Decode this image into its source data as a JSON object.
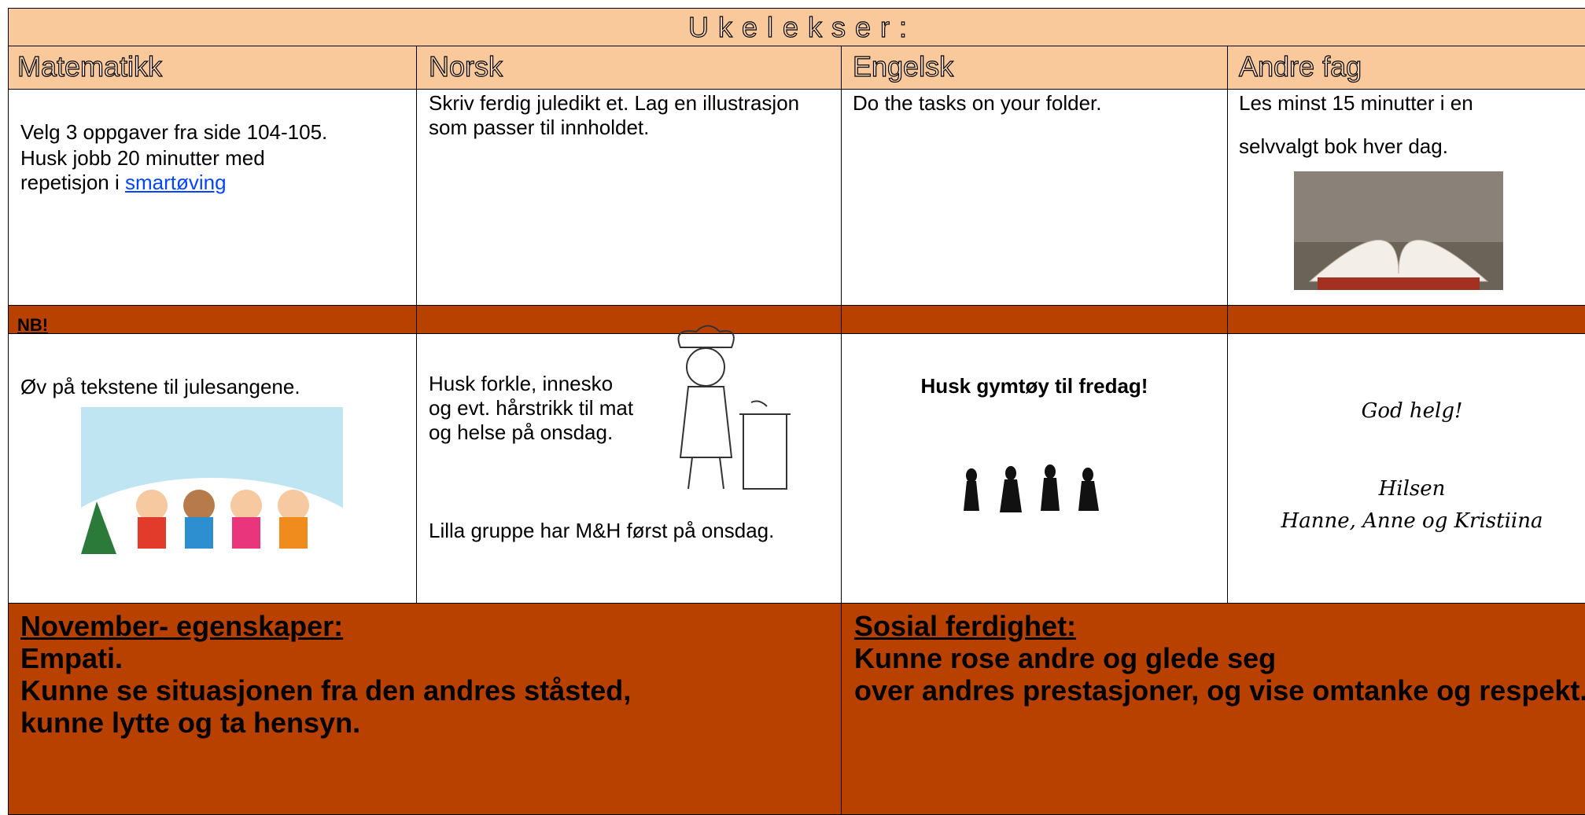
{
  "header": {
    "title": "Ukelekser:"
  },
  "table": {
    "headers": [
      "Matematikk",
      "Norsk",
      "Engelsk",
      "Andre fag"
    ],
    "homework": {
      "math": {
        "line1": "Velg 3 oppgaver fra side 104-105.",
        "line2": "Husk jobb 20 minutter med repetisjon i",
        "link": "smartøving"
      },
      "norsk": "Skriv ferdig juledikt et. Lag en illustrasjon som passer til innholdet.",
      "engelsk": "Do the tasks on your folder.",
      "andre": {
        "line1": "Les minst 15 minutter i en",
        "line2": "selvvalgt bok hver dag."
      }
    },
    "nb_label": "NB!",
    "notes": {
      "math": "Øv på tekstene til julesangene.",
      "norsk": {
        "line1": "Husk forkle, innesko og evt. hårstrikk til mat og helse på onsdag.",
        "line2": "Lilla gruppe har M&H først på onsdag."
      },
      "engelsk": "Husk gymtøy til fredag!",
      "andre": {
        "greeting": "God helg!",
        "regards": "Hilsen",
        "names": "Hanne, Anne og Kristiina"
      }
    },
    "bottom": {
      "left": {
        "heading": "November- egenskaper:",
        "line1": "Empati.",
        "line2": "Kunne se situasjonen fra den andres ståsted, kunne lytte og ta hensyn."
      },
      "right": {
        "heading": "Sosial ferdighet:",
        "line1": "Kunne rose andre og glede seg",
        "line2": "over andres prestasjoner, og vise omtanke og respekt."
      }
    }
  }
}
